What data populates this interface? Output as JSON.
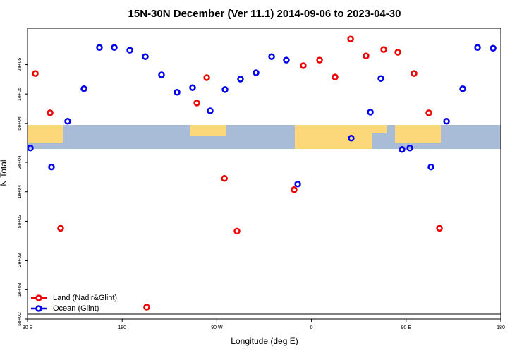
{
  "chart_data": {
    "type": "scatter",
    "title": "15N-30N December (Ver 11.1)   2014-09-06 to 2023-04-30",
    "x_label": "Longitude (deg E)",
    "y_label": "N Total",
    "xlim": [
      90,
      540
    ],
    "xticks": [
      {
        "value": 90,
        "label": "90 E"
      },
      {
        "value": 180,
        "label": "180"
      },
      {
        "value": 270,
        "label": "90 W"
      },
      {
        "value": 360,
        "label": "0"
      },
      {
        "value": 450,
        "label": "90 E"
      },
      {
        "value": 540,
        "label": "180"
      }
    ],
    "ylim": [
      500,
      470000
    ],
    "log_y": true,
    "yticks": [
      {
        "value": 500,
        "label": "5e+02"
      },
      {
        "value": 1000,
        "label": "1e+03"
      },
      {
        "value": 2000,
        "label": "2e+03"
      },
      {
        "value": 5000,
        "label": "5e+03"
      },
      {
        "value": 10000,
        "label": "1e+04"
      },
      {
        "value": 20000,
        "label": "2e+04"
      },
      {
        "value": 50000,
        "label": "5e+04"
      },
      {
        "value": 100000,
        "label": "1e+05"
      },
      {
        "value": 200000,
        "label": "2e+05"
      }
    ],
    "legend": "bottom-left",
    "series": [
      {
        "name": "Land (Nadir&Glint)",
        "color": "#ee0000",
        "x": [
          97.4,
          111.5,
          121.5,
          203.3,
          251,
          260.4,
          277.2,
          289.2,
          343.5,
          352.2,
          367.7,
          382.4,
          397.2,
          411.9,
          428.7,
          442.1,
          457.5,
          471.6,
          481.7
        ],
        "values": [
          162000,
          64100,
          4236,
          663,
          80900,
          147000,
          13700,
          3965,
          10500,
          195000,
          222000,
          149000,
          365000,
          245000,
          285000,
          267000,
          162000,
          64100,
          4236
        ]
      },
      {
        "name": "Ocean (Glint)",
        "color": "#0000ee",
        "x": [
          92.7,
          112.8,
          128.2,
          143.7,
          158.4,
          172.5,
          187.3,
          202,
          217.4,
          232.2,
          246.9,
          263.7,
          277.8,
          292.5,
          307.3,
          322.1,
          336.1,
          346.9,
          397.8,
          416,
          426,
          446.1,
          453.5,
          473.6,
          488.4,
          503.8,
          517.9,
          532.7
        ],
        "values": [
          28000,
          17900,
          52600,
          113000,
          299000,
          299000,
          280000,
          241000,
          157000,
          104000,
          116000,
          67300,
          111000,
          142000,
          165000,
          241000,
          222000,
          12000,
          35300,
          65200,
          144000,
          27100,
          28000,
          17900,
          52600,
          113000,
          299000,
          294000
        ]
      }
    ]
  }
}
